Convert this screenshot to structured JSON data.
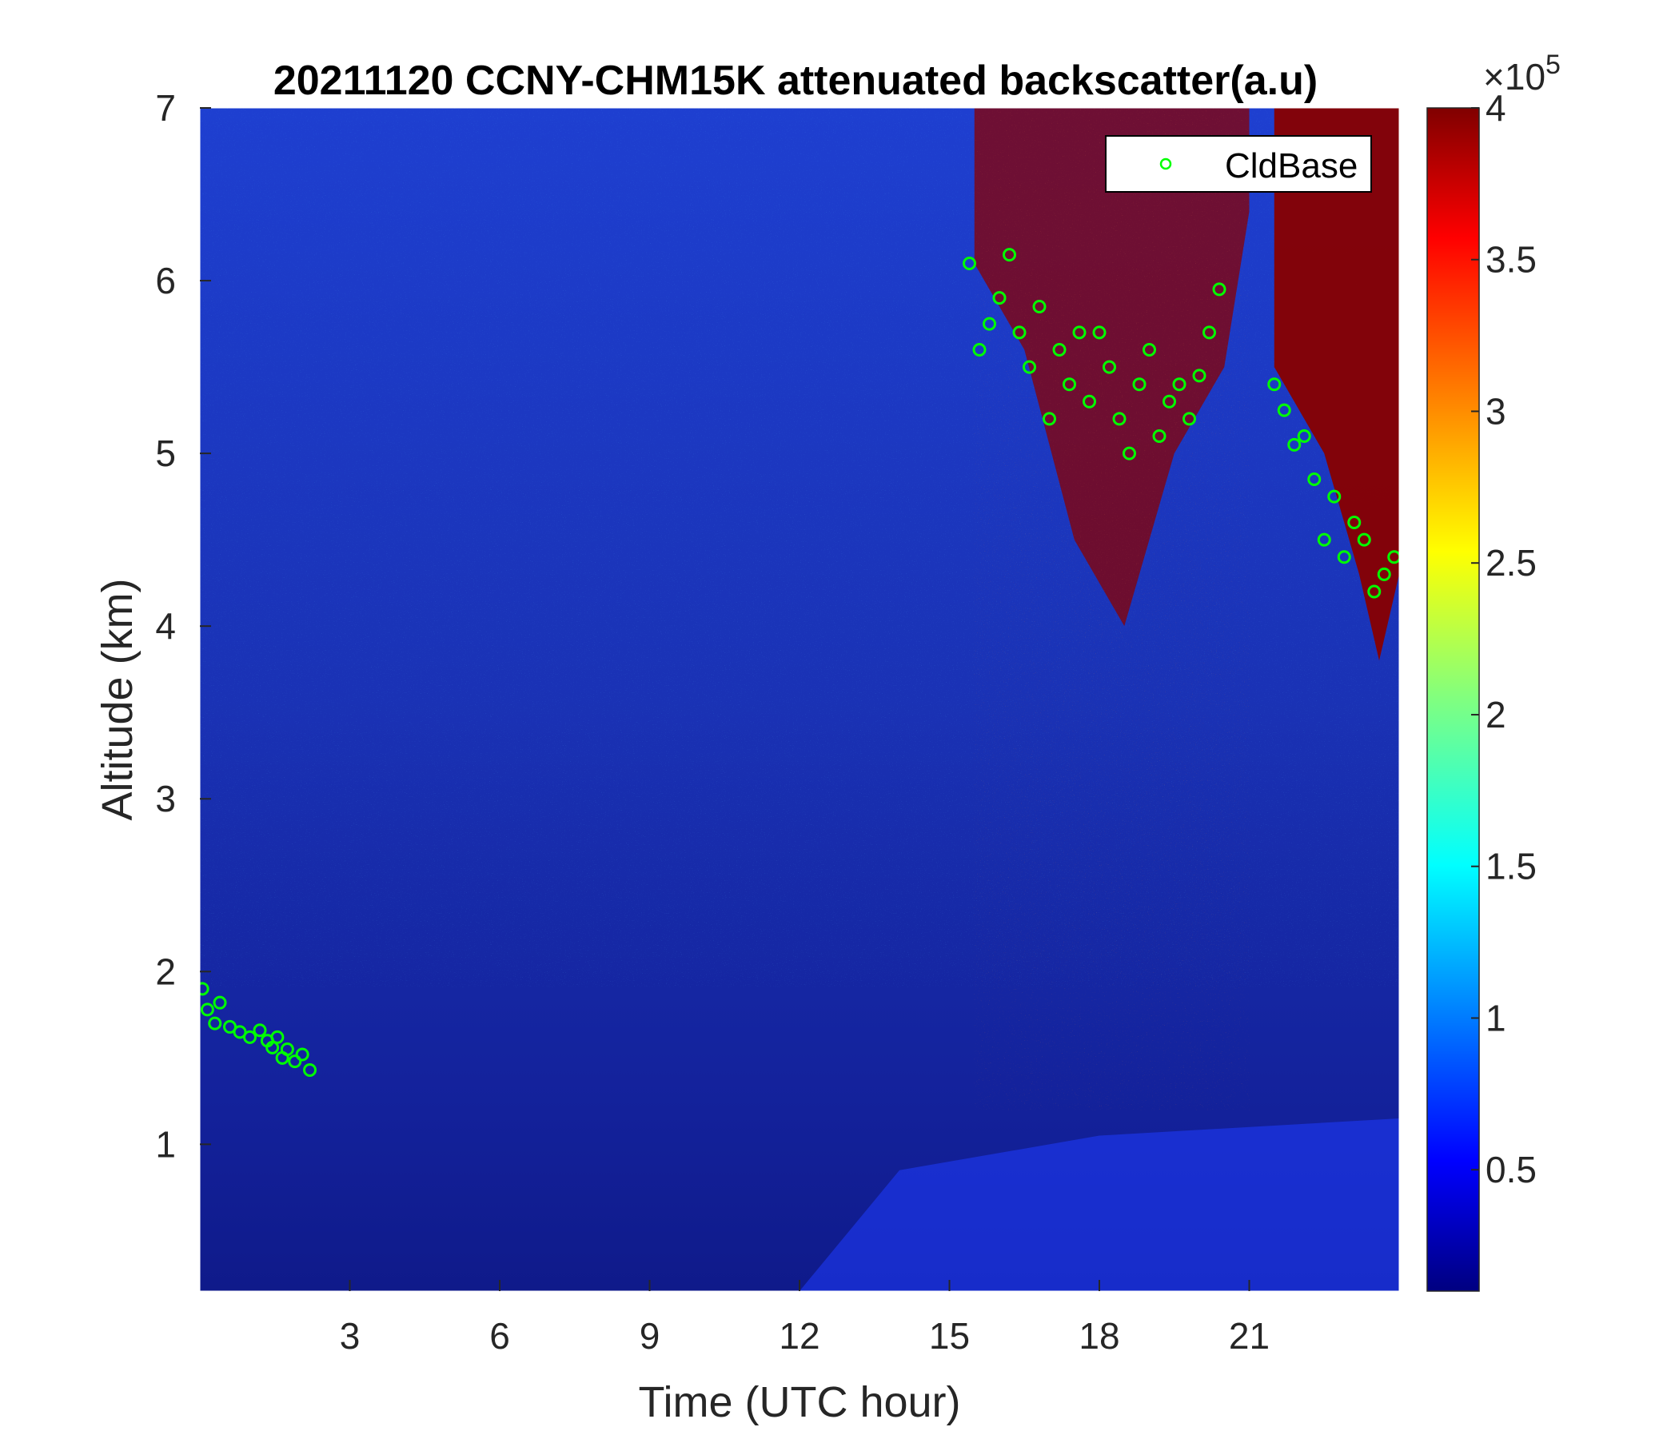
{
  "chart_data": {
    "type": "heatmap",
    "title": "20211120 CCNY-CHM15K attenuated backscatter(a.u)",
    "xlabel": "Time (UTC hour)",
    "ylabel": "Altitude (km)",
    "xlim": [
      0,
      24
    ],
    "ylim": [
      0.15,
      7
    ],
    "xticks": [
      3,
      6,
      9,
      12,
      15,
      18,
      21
    ],
    "yticks": [
      1,
      2,
      3,
      4,
      5,
      6,
      7
    ],
    "colorbar": {
      "colormap": "jet",
      "range": [
        10000,
        400000
      ],
      "ticks": [
        0.5,
        1,
        1.5,
        2,
        2.5,
        3,
        3.5,
        4
      ],
      "tick_labels": [
        "0.5",
        "1",
        "1.5",
        "2",
        "2.5",
        "3",
        "3.5",
        "4"
      ],
      "multiplier_base": "×10",
      "multiplier_exp": "5"
    },
    "legend": {
      "position": "top-right",
      "entries": [
        "CldBase"
      ]
    },
    "series": [
      {
        "name": "CldBase",
        "marker": "circle",
        "color": "#00ff00",
        "x": [
          0.05,
          0.15,
          0.3,
          0.4,
          0.6,
          0.8,
          1.0,
          1.2,
          1.35,
          1.45,
          1.55,
          1.65,
          1.75,
          1.9,
          2.05,
          2.2,
          15.4,
          15.6,
          15.8,
          16.0,
          16.2,
          16.4,
          16.6,
          16.8,
          17.0,
          17.2,
          17.4,
          17.6,
          17.8,
          18.0,
          18.2,
          18.4,
          18.6,
          18.8,
          19.0,
          19.2,
          19.4,
          19.6,
          19.8,
          20.0,
          20.2,
          20.4,
          21.5,
          21.7,
          21.9,
          22.1,
          22.3,
          22.5,
          22.7,
          22.9,
          23.1,
          23.3,
          23.5,
          23.7,
          23.9
        ],
        "y": [
          1.9,
          1.78,
          1.7,
          1.82,
          1.68,
          1.65,
          1.62,
          1.66,
          1.6,
          1.56,
          1.62,
          1.5,
          1.55,
          1.48,
          1.52,
          1.43,
          6.1,
          5.6,
          5.75,
          5.9,
          6.15,
          5.7,
          5.5,
          5.85,
          5.2,
          5.6,
          5.4,
          5.7,
          5.3,
          5.7,
          5.5,
          5.2,
          5.0,
          5.4,
          5.6,
          5.1,
          5.3,
          5.4,
          5.2,
          5.45,
          5.7,
          5.95,
          5.4,
          5.25,
          5.05,
          5.1,
          4.85,
          4.5,
          4.75,
          4.4,
          4.6,
          4.5,
          4.2,
          4.3,
          4.4
        ]
      }
    ]
  }
}
